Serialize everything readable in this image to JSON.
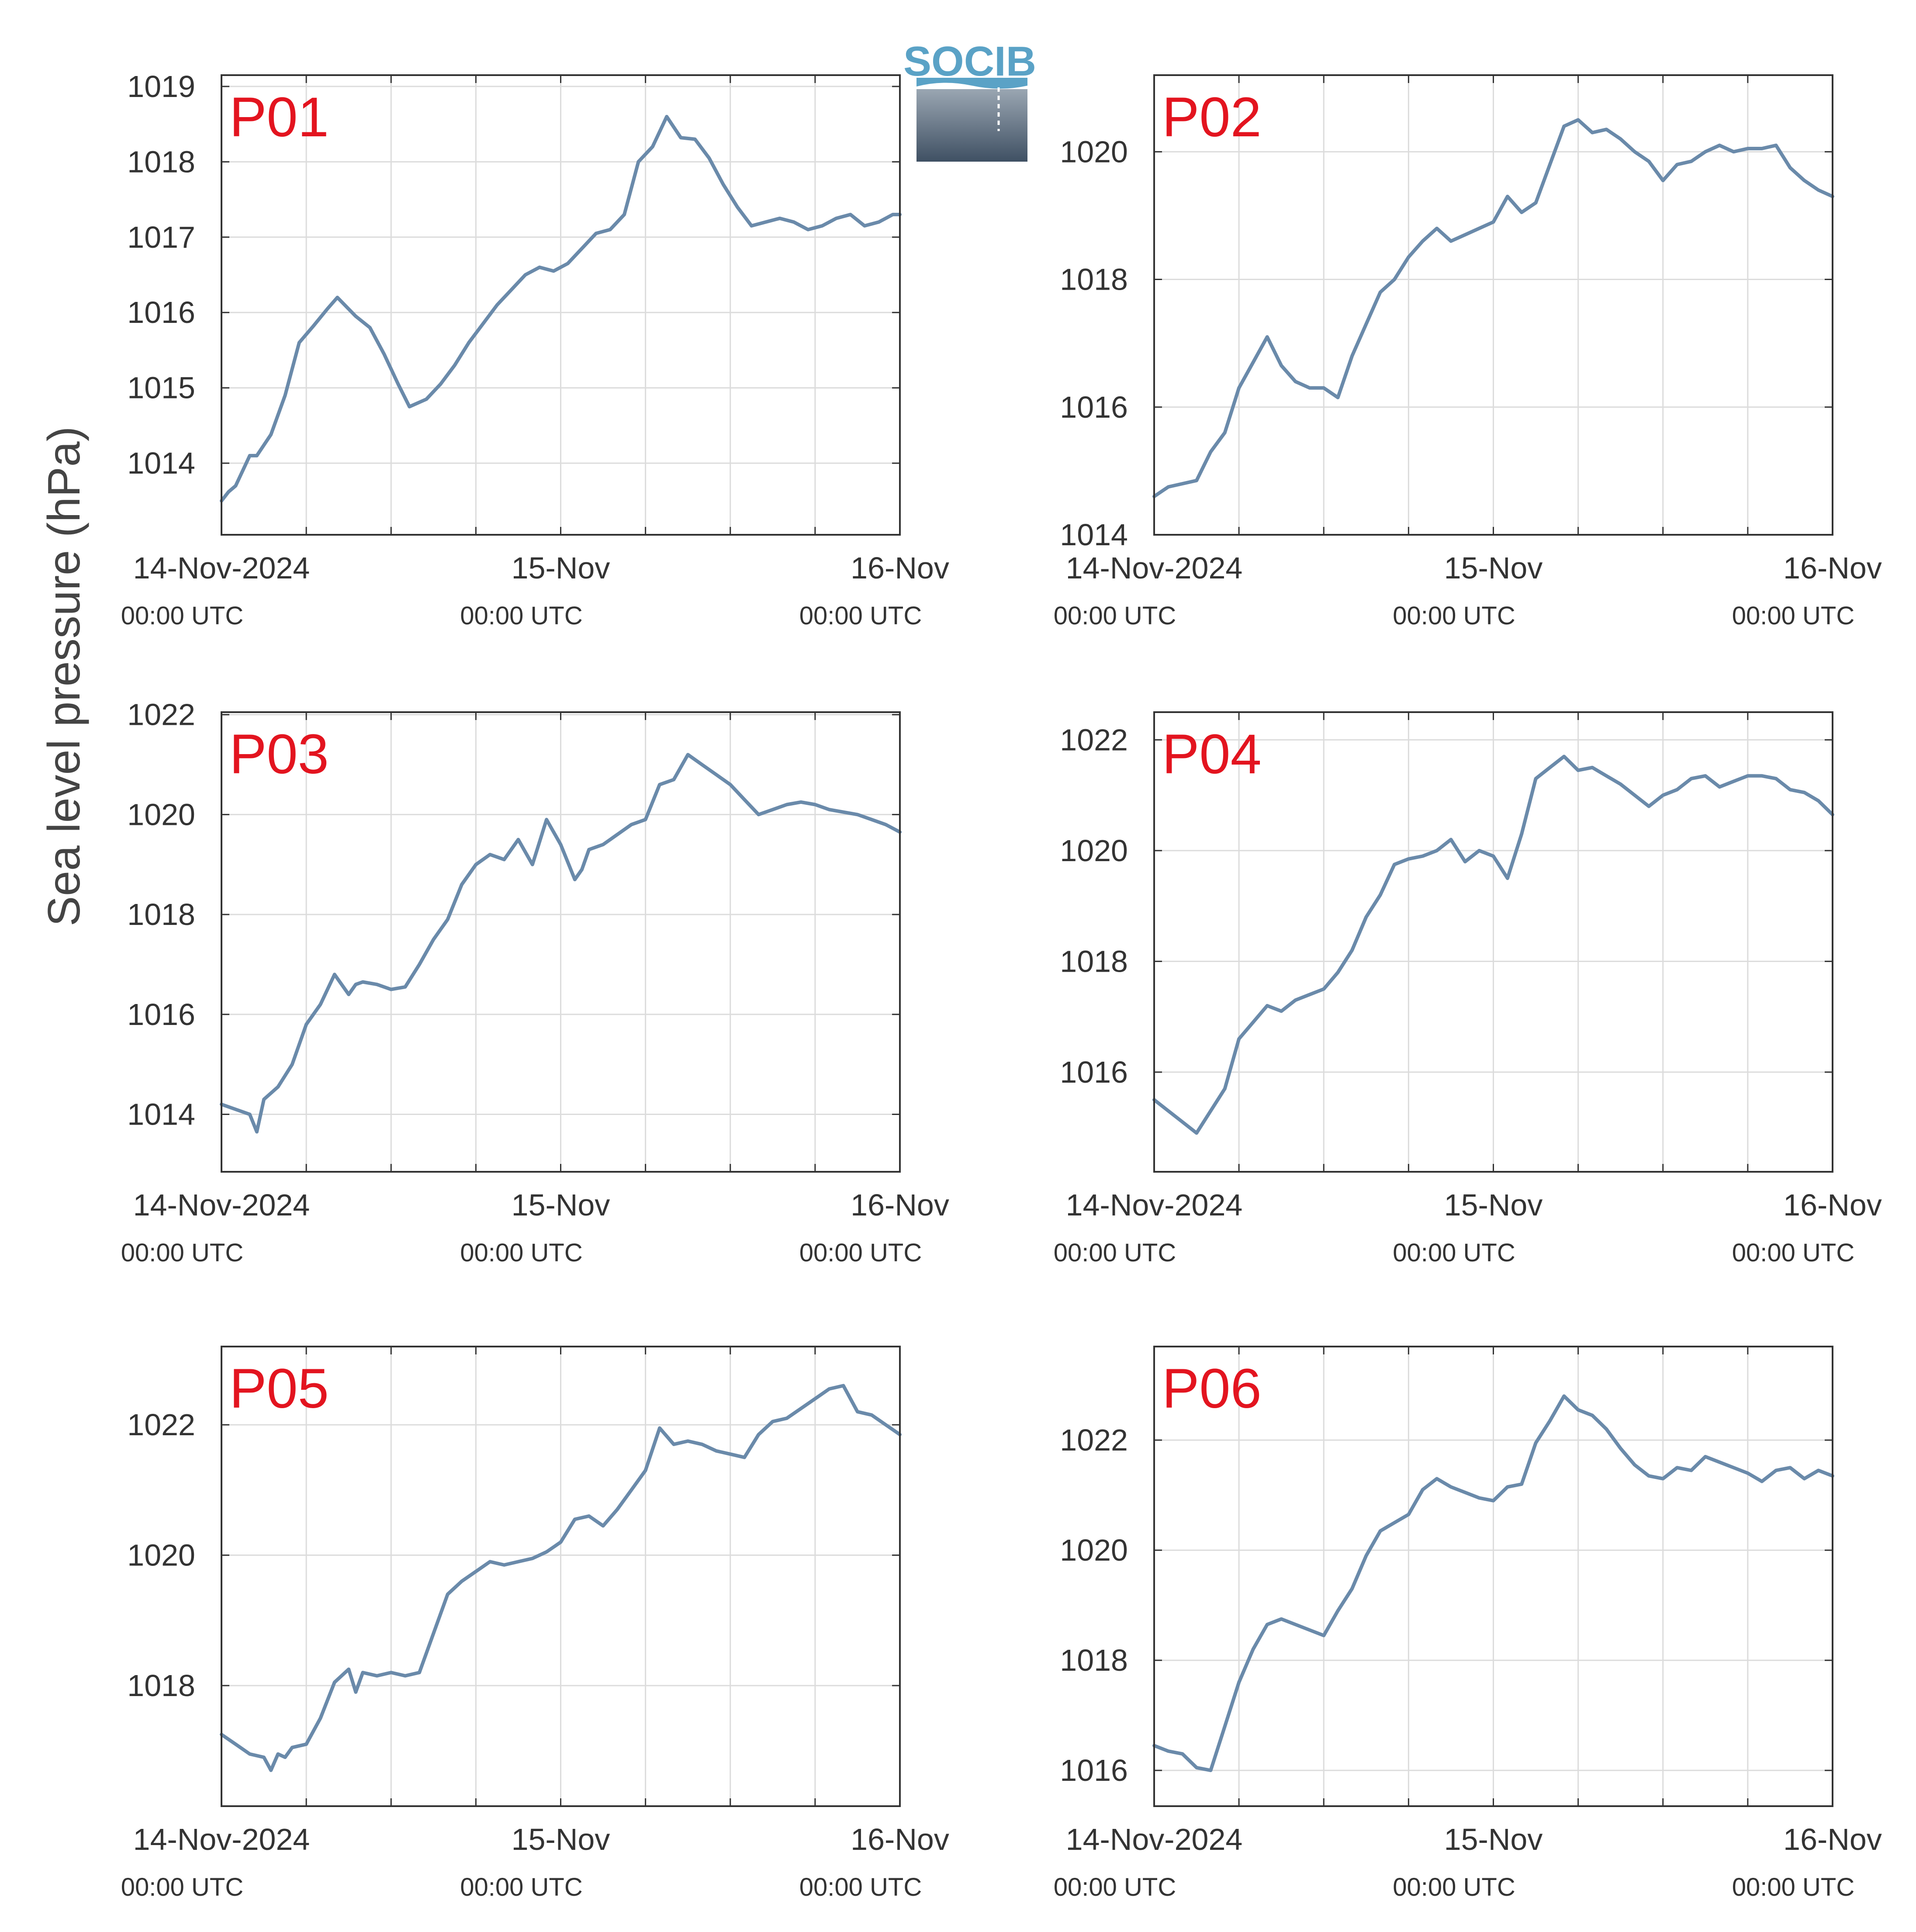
{
  "figure": {
    "ylabel": "Sea level pressure (hPa)",
    "logo_text": "SOCIB",
    "colors": {
      "line": "#6a8aaa",
      "panel_label": "#e3141f",
      "grid": "#dcdcdc",
      "axis": "#333333",
      "text": "#333333",
      "logo_top": "#5aa2c6",
      "logo_bottom": "#3f5063"
    }
  },
  "chart_data": [
    {
      "type": "line",
      "panel_label": "P01",
      "grid": true,
      "xlim": [
        "2024-11-14T00:00Z",
        "2024-11-16T00:00Z"
      ],
      "xtick_labels": [
        [
          "14-Nov-2024",
          "00:00 UTC"
        ],
        [
          "15-Nov",
          "00:00 UTC"
        ],
        [
          "16-Nov",
          "00:00 UTC"
        ]
      ],
      "ylim": [
        1013.05,
        1019.15
      ],
      "yticks": [
        1014,
        1015,
        1016,
        1017,
        1018,
        1019
      ],
      "series": [
        {
          "x_hours": [
            0,
            0.5,
            1,
            2,
            2.5,
            3.5,
            4.5,
            5.5,
            6.5,
            7.5,
            8.2,
            9.5,
            10.5,
            11.5,
            12.5,
            13.3,
            14.5,
            15.5,
            16.5,
            17.5,
            18.5,
            19.5,
            20.5,
            21.5,
            22.5,
            23.5,
            24.5,
            25.5,
            26.5,
            27.5,
            28.5,
            29.5,
            30.5,
            31.5,
            32.5,
            33.5,
            34.5,
            35.5,
            36.5,
            37.5,
            38.5,
            39.5,
            40.5,
            41.5,
            42.5,
            43.5,
            44.5,
            45.5,
            46.5,
            47.5,
            48
          ],
          "values": [
            1013.5,
            1013.62,
            1013.7,
            1014.1,
            1014.1,
            1014.38,
            1014.9,
            1015.6,
            1015.82,
            1016.05,
            1016.2,
            1015.95,
            1015.8,
            1015.45,
            1015.05,
            1014.75,
            1014.85,
            1015.05,
            1015.3,
            1015.6,
            1015.85,
            1016.1,
            1016.3,
            1016.5,
            1016.6,
            1016.55,
            1016.65,
            1016.85,
            1017.05,
            1017.1,
            1017.3,
            1018.0,
            1018.2,
            1018.6,
            1018.32,
            1018.3,
            1018.05,
            1017.7,
            1017.4,
            1017.15,
            1017.2,
            1017.25,
            1017.2,
            1017.1,
            1017.15,
            1017.25,
            1017.3,
            1017.15,
            1017.2,
            1017.3,
            1017.3
          ]
        }
      ]
    },
    {
      "type": "line",
      "panel_label": "P02",
      "grid": true,
      "xlim": [
        "2024-11-14T00:00Z",
        "2024-11-16T00:00Z"
      ],
      "xtick_labels": [
        [
          "14-Nov-2024",
          "00:00 UTC"
        ],
        [
          "15-Nov",
          "00:00 UTC"
        ],
        [
          "16-Nov",
          "00:00 UTC"
        ]
      ],
      "ylim": [
        1014,
        1021.2
      ],
      "yticks": [
        1014,
        1016,
        1018,
        1020
      ],
      "series": [
        {
          "x_hours": [
            0,
            1,
            2,
            3,
            4,
            5,
            6,
            7,
            8,
            9,
            10,
            11,
            12,
            13,
            14,
            15,
            16,
            17,
            18,
            19,
            20,
            21,
            22,
            23,
            24,
            25,
            26,
            27,
            28,
            29,
            30,
            31,
            32,
            33,
            34,
            35,
            36,
            37,
            38,
            39,
            40,
            41,
            42,
            43,
            44,
            45,
            46,
            47,
            48
          ],
          "values": [
            1014.6,
            1014.75,
            1014.8,
            1014.85,
            1015.3,
            1015.6,
            1016.3,
            1016.7,
            1017.1,
            1016.65,
            1016.4,
            1016.3,
            1016.3,
            1016.15,
            1016.8,
            1017.3,
            1017.8,
            1018.0,
            1018.35,
            1018.6,
            1018.8,
            1018.6,
            1018.7,
            1018.8,
            1018.9,
            1019.3,
            1019.05,
            1019.2,
            1019.8,
            1020.4,
            1020.5,
            1020.3,
            1020.35,
            1020.2,
            1020.0,
            1019.85,
            1019.55,
            1019.8,
            1019.85,
            1020.0,
            1020.1,
            1020.0,
            1020.05,
            1020.05,
            1020.1,
            1019.75,
            1019.55,
            1019.4,
            1019.3
          ]
        }
      ]
    },
    {
      "type": "line",
      "panel_label": "P03",
      "grid": true,
      "xlim": [
        "2024-11-14T00:00Z",
        "2024-11-16T00:00Z"
      ],
      "xtick_labels": [
        [
          "14-Nov-2024",
          "00:00 UTC"
        ],
        [
          "15-Nov",
          "00:00 UTC"
        ],
        [
          "16-Nov",
          "00:00 UTC"
        ]
      ],
      "ylim": [
        1012.85,
        1022.05
      ],
      "yticks": [
        1014,
        1016,
        1018,
        1020,
        1022
      ],
      "series": [
        {
          "x_hours": [
            0,
            1,
            2,
            2.5,
            3,
            4,
            5,
            6,
            7,
            8,
            9,
            9.5,
            10,
            11,
            12,
            13,
            14,
            15,
            16,
            17,
            18,
            19,
            20,
            21,
            22,
            23,
            24,
            25,
            25.5,
            26,
            27,
            28,
            29,
            30,
            31,
            32,
            33,
            34,
            35,
            36,
            37,
            38,
            39,
            40,
            41,
            42,
            43,
            44,
            45,
            46,
            47,
            48
          ],
          "values": [
            1014.2,
            1014.1,
            1014.0,
            1013.65,
            1014.3,
            1014.55,
            1015.0,
            1015.8,
            1016.2,
            1016.8,
            1016.4,
            1016.6,
            1016.65,
            1016.6,
            1016.5,
            1016.55,
            1017.0,
            1017.5,
            1017.9,
            1018.6,
            1019.0,
            1019.2,
            1019.1,
            1019.5,
            1019.0,
            1019.9,
            1019.4,
            1018.7,
            1018.9,
            1019.3,
            1019.4,
            1019.6,
            1019.8,
            1019.9,
            1020.6,
            1020.7,
            1021.2,
            1021.0,
            1020.8,
            1020.6,
            1020.3,
            1020.0,
            1020.1,
            1020.2,
            1020.25,
            1020.2,
            1020.1,
            1020.05,
            1020.0,
            1019.9,
            1019.8,
            1019.65
          ]
        }
      ]
    },
    {
      "type": "line",
      "panel_label": "P04",
      "grid": true,
      "xlim": [
        "2024-11-14T00:00Z",
        "2024-11-16T00:00Z"
      ],
      "xtick_labels": [
        [
          "14-Nov-2024",
          "00:00 UTC"
        ],
        [
          "15-Nov",
          "00:00 UTC"
        ],
        [
          "16-Nov",
          "00:00 UTC"
        ]
      ],
      "ylim": [
        1014.2,
        1022.5
      ],
      "yticks": [
        1016,
        1018,
        1020,
        1022
      ],
      "series": [
        {
          "x_hours": [
            0,
            1,
            2,
            3,
            4,
            5,
            6,
            7,
            8,
            9,
            10,
            11,
            12,
            13,
            14,
            15,
            16,
            17,
            18,
            19,
            20,
            21,
            22,
            23,
            24,
            25,
            26,
            27,
            28,
            29,
            30,
            31,
            32,
            33,
            34,
            35,
            36,
            37,
            38,
            39,
            40,
            41,
            42,
            43,
            44,
            45,
            46,
            47,
            48
          ],
          "values": [
            1015.5,
            1015.3,
            1015.1,
            1014.9,
            1015.3,
            1015.7,
            1016.6,
            1016.9,
            1017.2,
            1017.1,
            1017.3,
            1017.4,
            1017.5,
            1017.8,
            1018.2,
            1018.8,
            1019.2,
            1019.75,
            1019.85,
            1019.9,
            1020.0,
            1020.2,
            1019.8,
            1020.0,
            1019.9,
            1019.5,
            1020.3,
            1021.3,
            1021.5,
            1021.7,
            1021.45,
            1021.5,
            1021.35,
            1021.2,
            1021.0,
            1020.8,
            1021.0,
            1021.1,
            1021.3,
            1021.35,
            1021.15,
            1021.25,
            1021.35,
            1021.35,
            1021.3,
            1021.1,
            1021.05,
            1020.9,
            1020.65
          ]
        }
      ]
    },
    {
      "type": "line",
      "panel_label": "P05",
      "grid": true,
      "xlim": [
        "2024-11-14T00:00Z",
        "2024-11-16T00:00Z"
      ],
      "xtick_labels": [
        [
          "14-Nov-2024",
          "00:00 UTC"
        ],
        [
          "15-Nov",
          "00:00 UTC"
        ],
        [
          "16-Nov",
          "00:00 UTC"
        ]
      ],
      "ylim": [
        1016.15,
        1023.2
      ],
      "yticks": [
        1018,
        1020,
        1022
      ],
      "series": [
        {
          "x_hours": [
            0,
            1,
            2,
            3,
            3.5,
            4,
            4.5,
            5,
            6,
            7,
            8,
            9,
            9.5,
            10,
            11,
            12,
            13,
            14,
            15,
            16,
            17,
            18,
            19,
            20,
            21,
            22,
            23,
            24,
            25,
            26,
            27,
            28,
            29,
            30,
            31,
            32,
            33,
            34,
            35,
            36,
            37,
            38,
            39,
            40,
            41,
            42,
            43,
            44,
            45,
            46,
            47,
            48
          ],
          "values": [
            1017.25,
            1017.1,
            1016.95,
            1016.9,
            1016.7,
            1016.95,
            1016.9,
            1017.05,
            1017.1,
            1017.5,
            1018.05,
            1018.25,
            1017.9,
            1018.2,
            1018.15,
            1018.2,
            1018.15,
            1018.2,
            1018.8,
            1019.4,
            1019.6,
            1019.75,
            1019.9,
            1019.85,
            1019.9,
            1019.95,
            1020.05,
            1020.2,
            1020.55,
            1020.6,
            1020.45,
            1020.7,
            1021.0,
            1021.3,
            1021.95,
            1021.7,
            1021.75,
            1021.7,
            1021.6,
            1021.55,
            1021.5,
            1021.85,
            1022.05,
            1022.1,
            1022.25,
            1022.4,
            1022.55,
            1022.6,
            1022.2,
            1022.15,
            1022.0,
            1021.85
          ]
        }
      ]
    },
    {
      "type": "line",
      "panel_label": "P06",
      "grid": true,
      "xlim": [
        "2024-11-14T00:00Z",
        "2024-11-16T00:00Z"
      ],
      "xtick_labels": [
        [
          "14-Nov-2024",
          "00:00 UTC"
        ],
        [
          "15-Nov",
          "00:00 UTC"
        ],
        [
          "16-Nov",
          "00:00 UTC"
        ]
      ],
      "ylim": [
        1015.35,
        1023.7
      ],
      "yticks": [
        1016,
        1018,
        1020,
        1022
      ],
      "series": [
        {
          "x_hours": [
            0,
            1,
            2,
            3,
            4,
            5,
            6,
            7,
            8,
            9,
            10,
            11,
            12,
            13,
            14,
            15,
            16,
            17,
            18,
            19,
            20,
            21,
            22,
            23,
            24,
            25,
            26,
            27,
            28,
            29,
            30,
            31,
            32,
            33,
            34,
            35,
            36,
            37,
            38,
            39,
            40,
            41,
            42,
            43,
            44,
            45,
            46,
            47,
            48
          ],
          "values": [
            1016.45,
            1016.35,
            1016.3,
            1016.05,
            1016.0,
            1016.8,
            1017.6,
            1018.2,
            1018.65,
            1018.75,
            1018.65,
            1018.55,
            1018.45,
            1018.9,
            1019.3,
            1019.9,
            1020.35,
            1020.5,
            1020.65,
            1021.1,
            1021.3,
            1021.15,
            1021.05,
            1020.95,
            1020.9,
            1021.15,
            1021.2,
            1021.95,
            1022.35,
            1022.8,
            1022.55,
            1022.45,
            1022.2,
            1021.85,
            1021.55,
            1021.35,
            1021.3,
            1021.5,
            1021.45,
            1021.7,
            1021.6,
            1021.5,
            1021.4,
            1021.25,
            1021.45,
            1021.5,
            1021.3,
            1021.45,
            1021.35
          ]
        }
      ]
    }
  ]
}
